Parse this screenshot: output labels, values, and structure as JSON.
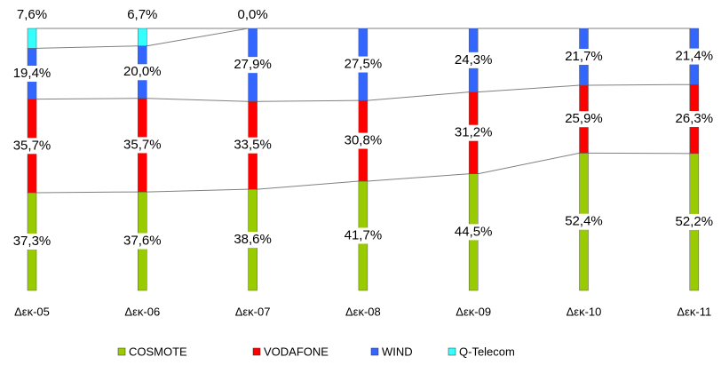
{
  "chart_data": {
    "type": "stacked_bar",
    "categories": [
      "Δεκ-05",
      "Δεκ-06",
      "Δεκ-07",
      "Δεκ-08",
      "Δεκ-09",
      "Δεκ-10",
      "Δεκ-11"
    ],
    "series": [
      {
        "name": "COSMOTE",
        "color": "#99cc00",
        "values": [
          37.3,
          37.6,
          38.6,
          41.7,
          44.5,
          52.4,
          52.2
        ],
        "value_labels": [
          "37,3%",
          "37,6%",
          "38,6%",
          "41,7%",
          "44,5%",
          "52,4%",
          "52,2%"
        ]
      },
      {
        "name": "VODAFONE",
        "color": "#ff0000",
        "values": [
          35.7,
          35.7,
          33.5,
          30.8,
          31.2,
          25.9,
          26.3
        ],
        "value_labels": [
          "35,7%",
          "35,7%",
          "33,5%",
          "30,8%",
          "31,2%",
          "25,9%",
          "26,3%"
        ]
      },
      {
        "name": "WIND",
        "color": "#3366ff",
        "values": [
          19.4,
          20.0,
          27.9,
          27.5,
          24.3,
          21.7,
          21.4
        ],
        "value_labels": [
          "19,4%",
          "20,0%",
          "27,9%",
          "27,5%",
          "24,3%",
          "21,7%",
          "21,4%"
        ]
      },
      {
        "name": "Q-Telecom",
        "color": "#33ffff",
        "values": [
          7.6,
          6.7,
          0.0,
          null,
          null,
          null,
          null
        ],
        "value_labels": [
          "7,6%",
          "6,7%",
          "0,0%",
          null,
          null,
          null,
          null
        ]
      }
    ]
  }
}
